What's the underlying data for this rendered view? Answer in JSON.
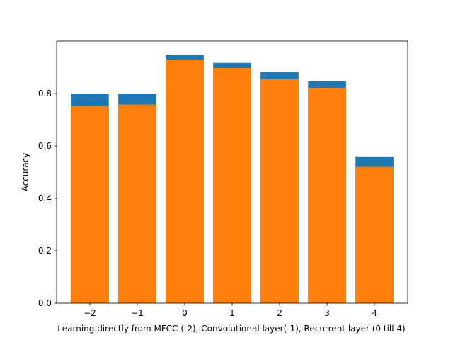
{
  "chart_data": {
    "type": "bar",
    "categories": [
      "−2",
      "−1",
      "0",
      "1",
      "2",
      "3",
      "4"
    ],
    "x": [
      -2,
      -1,
      0,
      1,
      2,
      3,
      4
    ],
    "series": [
      {
        "color": "#1f77b4",
        "values": [
          0.8,
          0.8,
          0.948,
          0.917,
          0.882,
          0.847,
          0.56
        ]
      },
      {
        "color": "#ff7f0e",
        "values": [
          0.752,
          0.758,
          0.93,
          0.897,
          0.855,
          0.822,
          0.52
        ]
      }
    ],
    "overlay": true,
    "xlabel": "Learning directly from MFCC (-2), Convolutional layer(-1), Recurrent layer (0 till 4)",
    "ylabel": "Accuracy",
    "xlim": [
      -2.7,
      4.7
    ],
    "ylim": [
      0,
      1.0
    ],
    "yticks": [
      0.0,
      0.2,
      0.4,
      0.6,
      0.8
    ],
    "ytick_labels": [
      "0.0",
      "0.2",
      "0.4",
      "0.6",
      "0.8"
    ],
    "grid": false
  }
}
